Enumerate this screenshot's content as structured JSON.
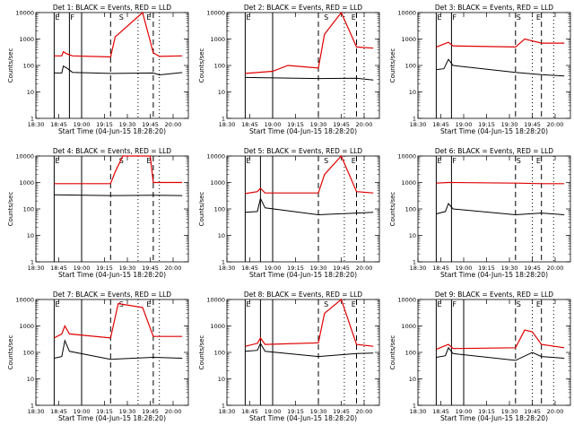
{
  "chart_data": {
    "type": "line",
    "grid": false,
    "legend_placement": "none",
    "y_scale": "log",
    "ylim": [
      1,
      10000
    ],
    "x_ticks": [
      "18:30",
      "18:45",
      "19:00",
      "19:15",
      "19:30",
      "19:45",
      "20:00"
    ],
    "xlim": [
      "18:30",
      "20:10"
    ],
    "y_ticks": [
      "1",
      "10",
      "100",
      "1000",
      "10000"
    ],
    "xlabel": "Start Time (04-Jun-15 18:28:20)",
    "ylabel": "Counts/sec",
    "colors": {
      "events": "#000000",
      "lld": "#e00000"
    },
    "panels": [
      {
        "title": "Det 1: BLACK = Events, RED = LLD",
        "solid": [
          "18:42",
          "18:52",
          "19:00"
        ],
        "dashed": [
          "19:19",
          "19:47"
        ],
        "dotted": [
          "19:37",
          "19:51"
        ],
        "markers": [
          {
            "t": "18:42",
            "label": "E"
          },
          {
            "t": "18:52",
            "label": "F"
          },
          {
            "t": "19:24",
            "label": "S"
          },
          {
            "t": "19:42",
            "label": "E"
          }
        ],
        "series": [
          {
            "key": "events",
            "points": [
              [
                "18:42",
                52
              ],
              [
                "18:47",
                52
              ],
              [
                "18:48",
                95
              ],
              [
                "18:51",
                75
              ],
              [
                "18:54",
                55
              ],
              [
                "19:19",
                50
              ],
              [
                "19:47",
                52
              ],
              [
                "19:51",
                44
              ],
              [
                "20:06",
                54
              ]
            ]
          },
          {
            "key": "lld",
            "points": [
              [
                "18:42",
                230
              ],
              [
                "18:47",
                230
              ],
              [
                "18:48",
                330
              ],
              [
                "18:50",
                280
              ],
              [
                "18:54",
                230
              ],
              [
                "19:19",
                210
              ],
              [
                "19:22",
                1200
              ],
              [
                "19:40",
                10000
              ],
              [
                "19:47",
                300
              ],
              [
                "19:51",
                220
              ],
              [
                "20:06",
                230
              ]
            ]
          }
        ]
      },
      {
        "title": "Det 2: BLACK = Events, RED = LLD",
        "solid": [
          "18:42",
          "19:00"
        ],
        "dashed": [
          "19:30",
          "19:55"
        ],
        "dotted": [
          "19:47",
          "20:00"
        ],
        "markers": [
          {
            "t": "18:42",
            "label": "E"
          },
          {
            "t": "19:33",
            "label": "S"
          },
          {
            "t": "19:51",
            "label": "E"
          }
        ],
        "series": [
          {
            "key": "events",
            "points": [
              [
                "18:42",
                35
              ],
              [
                "19:30",
                32
              ],
              [
                "19:55",
                33
              ],
              [
                "20:06",
                28
              ]
            ]
          },
          {
            "key": "lld",
            "points": [
              [
                "18:42",
                50
              ],
              [
                "19:00",
                60
              ],
              [
                "19:10",
                100
              ],
              [
                "19:30",
                80
              ],
              [
                "19:34",
                1500
              ],
              [
                "19:45",
                10000
              ],
              [
                "19:55",
                500
              ],
              [
                "20:06",
                450
              ]
            ]
          }
        ]
      },
      {
        "title": "Det 3: BLACK = Events, RED = LLD",
        "solid": [
          "18:42",
          "18:52"
        ],
        "dashed": [
          "19:34",
          "19:51"
        ],
        "dotted": [
          "19:45",
          "19:59"
        ],
        "markers": [
          {
            "t": "18:42",
            "label": "E"
          },
          {
            "t": "18:52",
            "label": "F"
          },
          {
            "t": "19:34",
            "label": "S"
          },
          {
            "t": "19:47",
            "label": "E"
          }
        ],
        "series": [
          {
            "key": "events",
            "points": [
              [
                "18:42",
                70
              ],
              [
                "18:47",
                75
              ],
              [
                "18:50",
                170
              ],
              [
                "18:53",
                100
              ],
              [
                "19:34",
                55
              ],
              [
                "19:51",
                45
              ],
              [
                "20:06",
                40
              ]
            ]
          },
          {
            "key": "lld",
            "points": [
              [
                "18:42",
                500
              ],
              [
                "18:50",
                750
              ],
              [
                "18:53",
                550
              ],
              [
                "19:34",
                500
              ],
              [
                "19:40",
                1000
              ],
              [
                "19:51",
                700
              ],
              [
                "20:06",
                700
              ]
            ]
          }
        ]
      },
      {
        "title": "Det 4: BLACK = Events, RED = LLD",
        "solid": [
          "18:42",
          "19:00"
        ],
        "dashed": [
          "19:19",
          "19:47"
        ],
        "dotted": [
          "19:37",
          "19:51"
        ],
        "markers": [
          {
            "t": "18:42",
            "label": "E"
          },
          {
            "t": "19:24",
            "label": "S"
          },
          {
            "t": "19:42",
            "label": "E"
          }
        ],
        "series": [
          {
            "key": "events",
            "points": [
              [
                "18:42",
                340
              ],
              [
                "19:19",
                320
              ],
              [
                "19:47",
                330
              ],
              [
                "20:06",
                320
              ]
            ]
          },
          {
            "key": "lld",
            "points": [
              [
                "18:42",
                900
              ],
              [
                "19:19",
                900
              ],
              [
                "19:22",
                2500
              ],
              [
                "19:27",
                10000
              ],
              [
                "19:45",
                10000
              ],
              [
                "19:47",
                1000
              ],
              [
                "20:06",
                1000
              ]
            ]
          }
        ]
      },
      {
        "title": "Det 5: BLACK = Events, RED = LLD",
        "solid": [
          "18:42",
          "18:52",
          "19:00"
        ],
        "dashed": [
          "19:30",
          "19:55"
        ],
        "dotted": [
          "19:47",
          "20:00"
        ],
        "markers": [
          {
            "t": "18:42",
            "label": "E"
          },
          {
            "t": "19:33",
            "label": "S"
          },
          {
            "t": "19:51",
            "label": "E"
          }
        ],
        "series": [
          {
            "key": "events",
            "points": [
              [
                "18:42",
                75
              ],
              [
                "18:50",
                80
              ],
              [
                "18:52",
                250
              ],
              [
                "18:55",
                110
              ],
              [
                "19:30",
                60
              ],
              [
                "19:55",
                70
              ],
              [
                "20:06",
                75
              ]
            ]
          },
          {
            "key": "lld",
            "points": [
              [
                "18:42",
                380
              ],
              [
                "18:50",
                450
              ],
              [
                "18:52",
                600
              ],
              [
                "18:55",
                400
              ],
              [
                "19:30",
                400
              ],
              [
                "19:34",
                2000
              ],
              [
                "19:45",
                10000
              ],
              [
                "19:55",
                450
              ],
              [
                "20:06",
                400
              ]
            ]
          }
        ]
      },
      {
        "title": "Det 6: BLACK = Events, RED = LLD",
        "solid": [
          "18:42",
          "18:52"
        ],
        "dashed": [
          "19:34",
          "19:51"
        ],
        "dotted": [
          "19:45",
          "19:59"
        ],
        "markers": [
          {
            "t": "18:42",
            "label": "E"
          },
          {
            "t": "18:52",
            "label": "F"
          },
          {
            "t": "19:34",
            "label": "S"
          },
          {
            "t": "19:47",
            "label": "E"
          }
        ],
        "series": [
          {
            "key": "events",
            "points": [
              [
                "18:42",
                65
              ],
              [
                "18:48",
                80
              ],
              [
                "18:50",
                160
              ],
              [
                "18:53",
                100
              ],
              [
                "19:34",
                60
              ],
              [
                "19:51",
                70
              ],
              [
                "20:06",
                60
              ]
            ]
          },
          {
            "key": "lld",
            "points": [
              [
                "18:42",
                950
              ],
              [
                "18:50",
                1000
              ],
              [
                "19:34",
                950
              ],
              [
                "19:51",
                900
              ],
              [
                "20:06",
                900
              ]
            ]
          }
        ]
      },
      {
        "title": "Det 7: BLACK = Events, RED = LLD",
        "solid": [
          "18:42",
          "19:00"
        ],
        "dashed": [
          "19:19",
          "19:47"
        ],
        "dotted": [
          "19:37",
          "19:51"
        ],
        "markers": [
          {
            "t": "18:42",
            "label": "E"
          },
          {
            "t": "19:24",
            "label": "S"
          },
          {
            "t": "19:42",
            "label": "E"
          }
        ],
        "series": [
          {
            "key": "events",
            "points": [
              [
                "18:42",
                60
              ],
              [
                "18:47",
                70
              ],
              [
                "18:49",
                280
              ],
              [
                "18:52",
                110
              ],
              [
                "19:19",
                55
              ],
              [
                "19:47",
                65
              ],
              [
                "20:06",
                60
              ]
            ]
          },
          {
            "key": "lld",
            "points": [
              [
                "18:42",
                350
              ],
              [
                "18:47",
                500
              ],
              [
                "18:49",
                1000
              ],
              [
                "18:52",
                500
              ],
              [
                "19:19",
                350
              ],
              [
                "19:24",
                7000
              ],
              [
                "19:40",
                5000
              ],
              [
                "19:47",
                400
              ],
              [
                "20:06",
                400
              ]
            ]
          }
        ]
      },
      {
        "title": "Det 8: BLACK = Events, RED = LLD",
        "solid": [
          "18:42",
          "18:52",
          "19:00"
        ],
        "dashed": [
          "19:30",
          "19:55"
        ],
        "dotted": [
          "19:47",
          "20:00"
        ],
        "markers": [
          {
            "t": "18:42",
            "label": "E"
          },
          {
            "t": "19:33",
            "label": "S"
          },
          {
            "t": "19:51",
            "label": "E"
          }
        ],
        "series": [
          {
            "key": "events",
            "points": [
              [
                "18:42",
                110
              ],
              [
                "18:50",
                120
              ],
              [
                "18:52",
                220
              ],
              [
                "18:55",
                110
              ],
              [
                "19:30",
                70
              ],
              [
                "19:55",
                90
              ],
              [
                "20:06",
                95
              ]
            ]
          },
          {
            "key": "lld",
            "points": [
              [
                "18:42",
                170
              ],
              [
                "18:50",
                220
              ],
              [
                "18:52",
                350
              ],
              [
                "18:55",
                200
              ],
              [
                "19:30",
                230
              ],
              [
                "19:34",
                3000
              ],
              [
                "19:45",
                10000
              ],
              [
                "19:55",
                200
              ],
              [
                "20:06",
                170
              ]
            ]
          }
        ]
      },
      {
        "title": "Det 9: BLACK = Events, RED = LLD",
        "solid": [
          "18:42",
          "18:52",
          "19:00"
        ],
        "dashed": [
          "19:34",
          "19:51"
        ],
        "dotted": [
          "19:45",
          "19:59"
        ],
        "markers": [
          {
            "t": "18:42",
            "label": "E"
          },
          {
            "t": "18:52",
            "label": "F"
          },
          {
            "t": "19:34",
            "label": "S"
          },
          {
            "t": "19:47",
            "label": "E"
          }
        ],
        "series": [
          {
            "key": "events",
            "points": [
              [
                "18:42",
                65
              ],
              [
                "18:48",
                75
              ],
              [
                "18:50",
                150
              ],
              [
                "18:53",
                90
              ],
              [
                "19:34",
                50
              ],
              [
                "19:45",
                100
              ],
              [
                "19:51",
                70
              ],
              [
                "20:06",
                60
              ]
            ]
          },
          {
            "key": "lld",
            "points": [
              [
                "18:42",
                130
              ],
              [
                "18:50",
                200
              ],
              [
                "18:53",
                140
              ],
              [
                "19:34",
                150
              ],
              [
                "19:40",
                700
              ],
              [
                "19:45",
                600
              ],
              [
                "19:51",
                200
              ],
              [
                "20:06",
                150
              ]
            ]
          }
        ]
      }
    ]
  }
}
